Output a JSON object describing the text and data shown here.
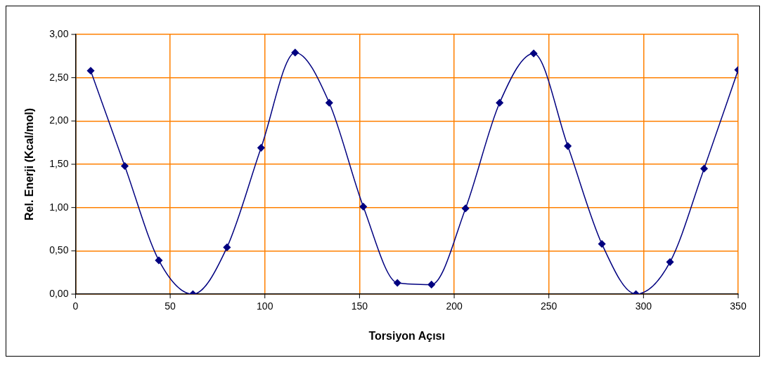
{
  "chart_data": {
    "type": "line",
    "xlabel": "Torsiyon Açısı",
    "ylabel": "Rel. Enerji (Kcal/mol)",
    "x": [
      8,
      26,
      44,
      62,
      80,
      98,
      116,
      134,
      152,
      170,
      188,
      206,
      224,
      242,
      260,
      278,
      296,
      314,
      332,
      350
    ],
    "series": [
      {
        "color": "#000080",
        "values": [
          2.58,
          1.48,
          0.39,
          0.0,
          0.54,
          1.69,
          2.79,
          2.21,
          1.01,
          0.13,
          0.11,
          0.99,
          2.21,
          2.78,
          1.71,
          0.58,
          0.0,
          0.37,
          1.45,
          2.59
        ]
      }
    ],
    "xlim": [
      0,
      350
    ],
    "xticks": [
      0,
      50,
      100,
      150,
      200,
      250,
      300,
      350
    ],
    "ylim": [
      0,
      3
    ],
    "yticks": [
      {
        "value": 0,
        "label": "0,00"
      },
      {
        "value": 0.5,
        "label": "0,50"
      },
      {
        "value": 1,
        "label": "1,00"
      },
      {
        "value": 1.5,
        "label": "1,50"
      },
      {
        "value": 2,
        "label": "2,00"
      },
      {
        "value": 2.5,
        "label": "2,50"
      },
      {
        "value": 3,
        "label": "3,00"
      }
    ],
    "grid": true,
    "marker": "diamond",
    "line_style": "solid",
    "legend": false
  }
}
